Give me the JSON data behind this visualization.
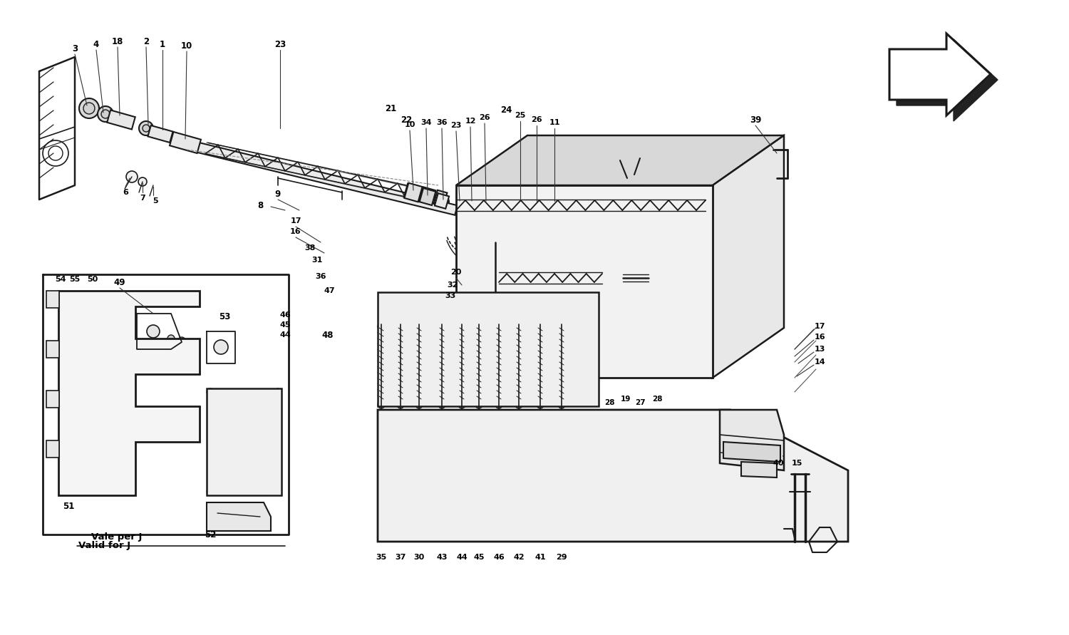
{
  "bg_color": "#ffffff",
  "line_color": "#1a1a1a",
  "fig_width": 15.0,
  "fig_height": 8.91,
  "dpi": 100
}
